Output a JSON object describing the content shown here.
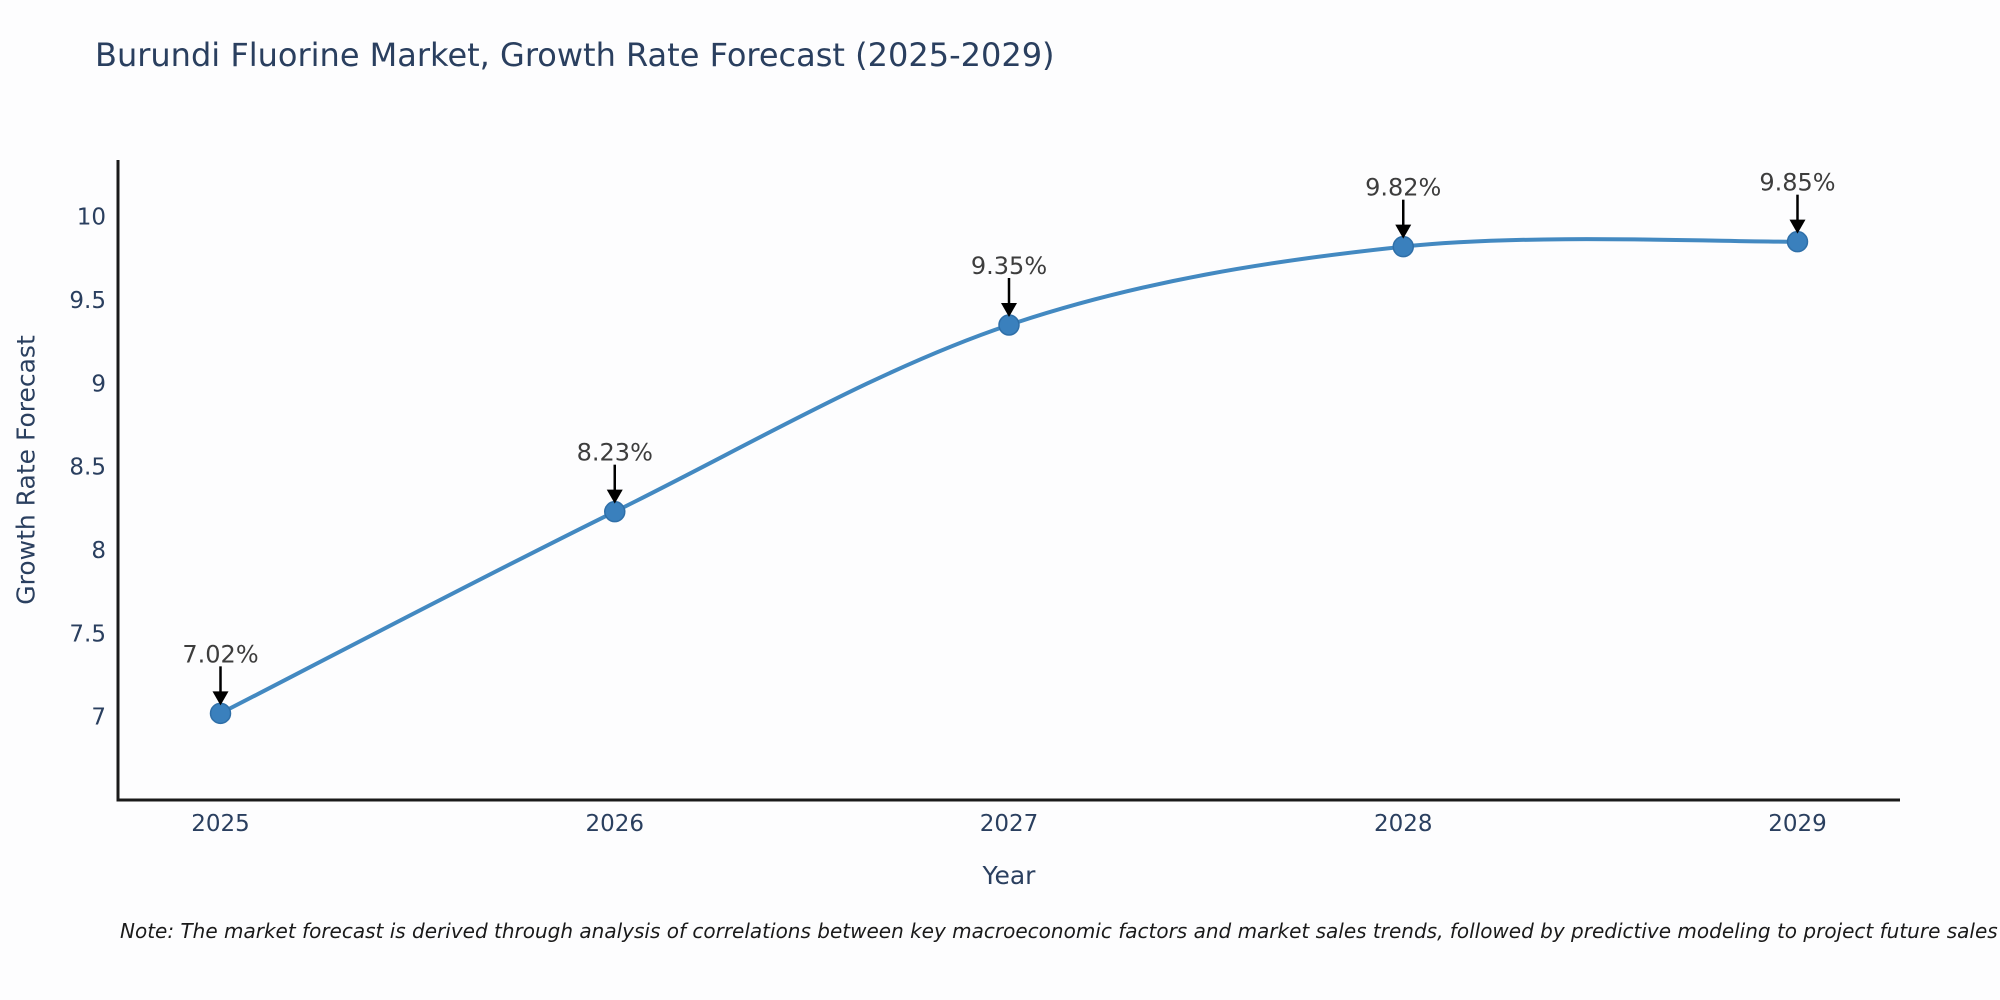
{
  "page": {
    "background": "#fdfdfe"
  },
  "chart": {
    "title": "Burundi Fluorine Market, Growth Rate Forecast (2025-2029)",
    "x_axis_label": "Year",
    "y_axis_label": "Growth Rate Forecast",
    "note": "Note: The market forecast is derived through analysis of correlations between key macroeconomic factors and market sales trends, followed by predictive modeling to project future sales",
    "colors": {
      "line": "#4389c1",
      "marker_fill": "#3a80bd",
      "marker_edge": "#2f6fa8",
      "axis_line": "#1a1a1a",
      "tick_text": "#2a3f5f",
      "annotation_text": "#3d3d3d",
      "annotation_arrow": "#000000",
      "title_text": "#2a3f5f"
    }
  },
  "chart_data": {
    "type": "line",
    "title": "Burundi Fluorine Market, Growth Rate Forecast (2025-2029)",
    "xlabel": "Year",
    "ylabel": "Growth Rate Forecast",
    "x": [
      2025,
      2026,
      2027,
      2028,
      2029
    ],
    "values": [
      7.02,
      8.23,
      9.35,
      9.82,
      9.85
    ],
    "point_labels": [
      "7.02%",
      "8.23%",
      "9.35%",
      "9.82%",
      "9.85%"
    ],
    "xticks": [
      2025,
      2026,
      2027,
      2028,
      2029
    ],
    "yticks": [
      7,
      7.5,
      8,
      8.5,
      9,
      9.5,
      10
    ],
    "xlim": [
      2024.74,
      2029.26
    ],
    "ylim": [
      6.5,
      10.34
    ],
    "grid": false,
    "legend": false,
    "line_shape": "spline",
    "annotation_style": "value label with downward arrow above each point"
  }
}
